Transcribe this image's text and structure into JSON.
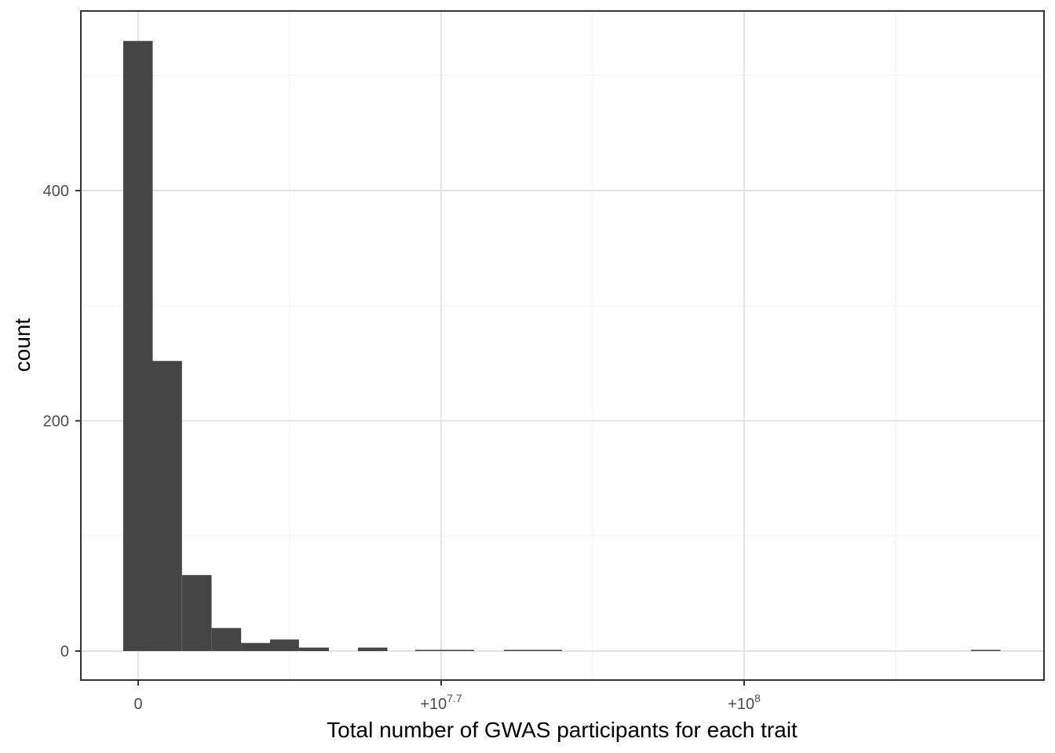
{
  "chart_data": {
    "type": "bar",
    "subtype": "histogram",
    "title": "",
    "xlabel": "Total number of GWAS participants for each trait",
    "ylabel": "count",
    "legend": "none",
    "grid": "on",
    "theme": "ggplot-bw-white-panel",
    "colors": {
      "bar_fill": "#454545",
      "grid_major": "#E3E3E3",
      "grid_minor": "#F0F0F0",
      "panel_border": "#333333",
      "tick_mark": "#333333",
      "tick_label": "#4D4D4D",
      "axis_title": "#000000",
      "background": "#FFFFFF"
    },
    "x_axis": {
      "scale": "pseudo-log-offset",
      "ticks": [
        {
          "frac": 0.0595,
          "base": "0",
          "sup": ""
        },
        {
          "frac": 0.3741,
          "base": "+10",
          "sup": "7.7"
        },
        {
          "frac": 0.6887,
          "base": "+10",
          "sup": "8"
        }
      ],
      "minor_fracs": [
        0.2168,
        0.5314,
        0.846
      ]
    },
    "y_axis": {
      "ticks": [
        0,
        200,
        400
      ],
      "minor_ticks": [
        100,
        300,
        500
      ],
      "ylim": [
        0,
        556
      ]
    },
    "bars": [
      {
        "x_frac": 0.044,
        "w_frac": 0.0306,
        "count": 530
      },
      {
        "x_frac": 0.0744,
        "w_frac": 0.0306,
        "count": 252
      },
      {
        "x_frac": 0.1051,
        "w_frac": 0.0306,
        "count": 66
      },
      {
        "x_frac": 0.1358,
        "w_frac": 0.0306,
        "count": 20
      },
      {
        "x_frac": 0.1663,
        "w_frac": 0.0301,
        "count": 7
      },
      {
        "x_frac": 0.1964,
        "w_frac": 0.0301,
        "count": 10
      },
      {
        "x_frac": 0.2266,
        "w_frac": 0.031,
        "count": 3
      },
      {
        "x_frac": 0.2877,
        "w_frac": 0.0306,
        "count": 3
      },
      {
        "x_frac": 0.3472,
        "w_frac": 0.0306,
        "count": 1
      },
      {
        "x_frac": 0.3778,
        "w_frac": 0.0306,
        "count": 1
      },
      {
        "x_frac": 0.4393,
        "w_frac": 0.0301,
        "count": 1
      },
      {
        "x_frac": 0.4694,
        "w_frac": 0.0301,
        "count": 1
      },
      {
        "x_frac": 0.9242,
        "w_frac": 0.0306,
        "count": 1
      }
    ]
  }
}
